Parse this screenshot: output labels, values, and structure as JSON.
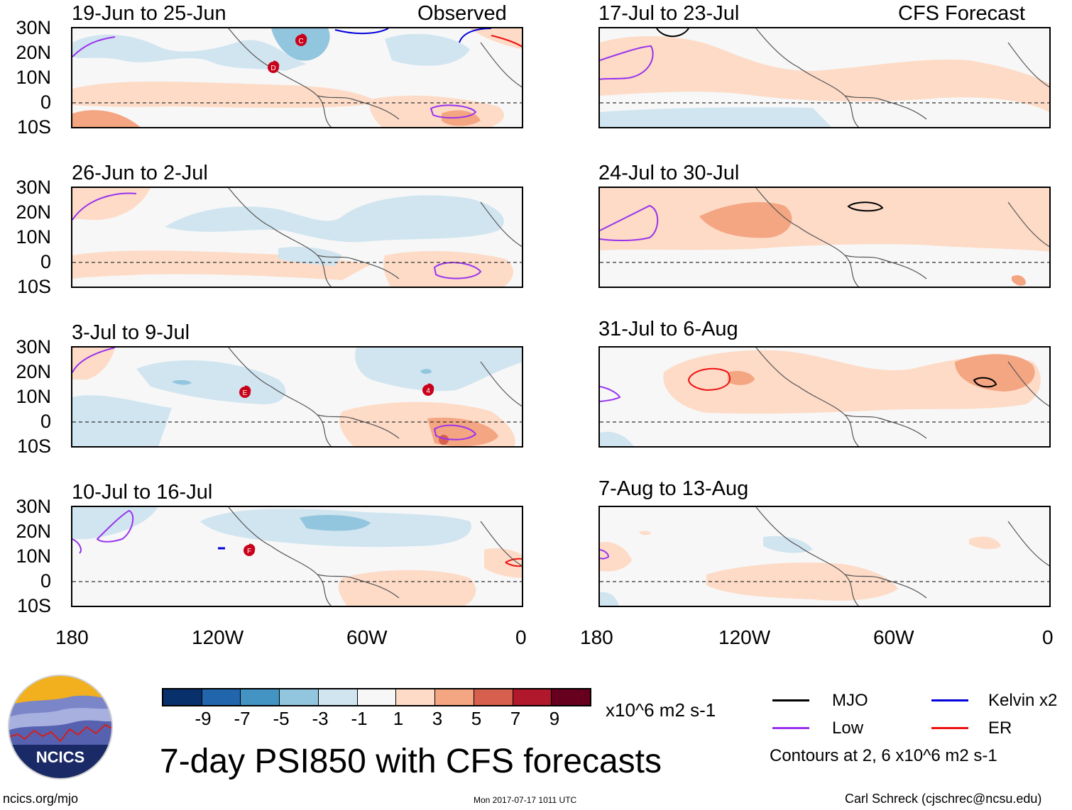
{
  "panels": [
    {
      "title": "19-Jun to 25-Jun",
      "tag": "Observed"
    },
    {
      "title": "17-Jul to 23-Jul",
      "tag": "CFS Forecast"
    },
    {
      "title": "26-Jun to 2-Jul",
      "tag": ""
    },
    {
      "title": "24-Jul to 30-Jul",
      "tag": ""
    },
    {
      "title": "3-Jul to 9-Jul",
      "tag": ""
    },
    {
      "title": "31-Jul to 6-Aug",
      "tag": ""
    },
    {
      "title": "10-Jul to 16-Jul",
      "tag": ""
    },
    {
      "title": "7-Aug to 13-Aug",
      "tag": ""
    }
  ],
  "lat_labels": [
    "30N",
    "20N",
    "10N",
    "0",
    "10S"
  ],
  "lon_labels": [
    "180",
    "120W",
    "60W",
    "0"
  ],
  "storm_markers": [
    {
      "panel": 0,
      "letter": "C"
    },
    {
      "panel": 0,
      "letter": "D"
    },
    {
      "panel": 4,
      "letter": "E"
    },
    {
      "panel": 4,
      "letter": "4"
    },
    {
      "panel": 6,
      "letter": "F"
    }
  ],
  "colorbar": {
    "labels": [
      "-9",
      "-7",
      "-5",
      "-3",
      "-1",
      "1",
      "3",
      "5",
      "7",
      "9"
    ],
    "colors": [
      "#08306b",
      "#2166ac",
      "#4393c3",
      "#92c5de",
      "#d1e5f0",
      "#f7f7f7",
      "#fddbc7",
      "#f4a582",
      "#d6604d",
      "#b2182b",
      "#67001f"
    ],
    "units": "x10^6 m2 s-1"
  },
  "legend": {
    "items": [
      {
        "label": "MJO",
        "color": "#000000"
      },
      {
        "label": "Kelvin x2",
        "color": "#0000dd"
      },
      {
        "label": "Low",
        "color": "#9933ee"
      },
      {
        "label": "ER",
        "color": "#ee1111"
      }
    ],
    "note": "Contours at 2, 6 x10^6 m2 s-1"
  },
  "title": "7-day PSI850 with CFS forecasts",
  "logo": {
    "text": "NCICS"
  },
  "footer": {
    "url": "ncics.org/mjo",
    "timestamp": "Mon 2017-07-17 1011 UTC",
    "author": "Carl Schreck (cjschrec@ncsu.edu)"
  }
}
